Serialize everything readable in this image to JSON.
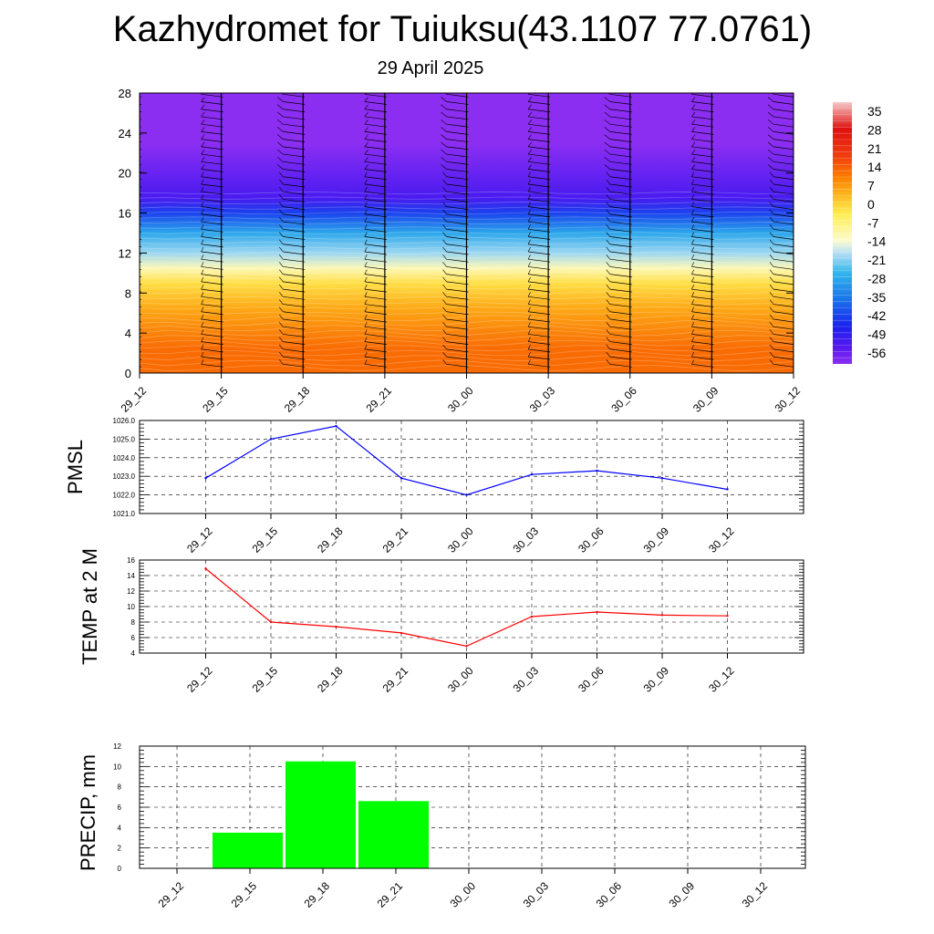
{
  "header": {
    "title": "Kazhydromet for Tuiuksu(43.1107 77.0761)",
    "subtitle": "29 April 2025"
  },
  "colors": {
    "pmsl_line": "#0000ff",
    "temp_line": "#ff0000",
    "precip_bar": "#00ff00",
    "wind_barb": "#000000"
  },
  "chart_data": [
    {
      "type": "heatmap",
      "title": "",
      "x": [
        "29_12",
        "29_15",
        "29_18",
        "29_21",
        "30_00",
        "30_03",
        "30_06",
        "30_09",
        "30_12"
      ],
      "ylabel": "",
      "ylim": [
        0,
        28
      ],
      "yticks": [
        0,
        4,
        8,
        12,
        16,
        20,
        24,
        28
      ],
      "colorbar": {
        "labels": [
          "35",
          "28",
          "21",
          "14",
          "7",
          "0",
          "-7",
          "-14",
          "-21",
          "-28",
          "-35",
          "-42",
          "-49",
          "-56"
        ],
        "stops": [
          {
            "value": 38,
            "color": "#f5c8c8"
          },
          {
            "value": 28,
            "color": "#e01010"
          },
          {
            "value": 18,
            "color": "#f23a10"
          },
          {
            "value": 10,
            "color": "#fb7d00"
          },
          {
            "value": 4,
            "color": "#fdb21a"
          },
          {
            "value": -4,
            "color": "#ffee55"
          },
          {
            "value": -14,
            "color": "#fbfbd0"
          },
          {
            "value": -18,
            "color": "#bfe2f3"
          },
          {
            "value": -26,
            "color": "#31b4ec"
          },
          {
            "value": -36,
            "color": "#1a72e8"
          },
          {
            "value": -46,
            "color": "#1a22f0"
          },
          {
            "value": -54,
            "color": "#5818f0"
          },
          {
            "value": -60,
            "color": "#8c2ef2"
          }
        ]
      },
      "field_description_bands": [
        {
          "y0": 0,
          "y1": 5,
          "value": 12
        },
        {
          "y0": 5,
          "y1": 8,
          "value": 5
        },
        {
          "y0": 8,
          "y1": 10,
          "value": -2
        },
        {
          "y0": 10,
          "y1": 11,
          "value": -12
        },
        {
          "y0": 11,
          "y1": 13,
          "value": -20
        },
        {
          "y0": 13,
          "y1": 15,
          "value": -28
        },
        {
          "y0": 15,
          "y1": 17,
          "value": -42
        },
        {
          "y0": 17,
          "y1": 18,
          "value": -52
        },
        {
          "y0": 18,
          "y1": 28,
          "value": -60
        }
      ]
    },
    {
      "type": "line",
      "ylabel": "PMSL",
      "x": [
        "29_12",
        "29_15",
        "29_18",
        "29_21",
        "30_00",
        "30_03",
        "30_06",
        "30_09",
        "30_12"
      ],
      "series": [
        {
          "values": [
            1022.9,
            1025.0,
            1025.7,
            1022.9,
            1022.0,
            1023.1,
            1023.3,
            1022.9,
            1022.3
          ]
        }
      ],
      "ylim": [
        1021.0,
        1026.0
      ],
      "yticks": [
        "1021.0",
        "1022.0",
        "1023.0",
        "1024.0",
        "1025.0",
        "1026.0"
      ],
      "grid": true
    },
    {
      "type": "line",
      "ylabel": "TEMP at 2 M",
      "x": [
        "29_12",
        "29_15",
        "29_18",
        "29_21",
        "30_00",
        "30_03",
        "30_06",
        "30_09",
        "30_12"
      ],
      "series": [
        {
          "values": [
            14.9,
            8.0,
            7.4,
            6.6,
            4.9,
            8.7,
            9.3,
            8.9,
            8.8
          ]
        }
      ],
      "ylim": [
        4,
        16
      ],
      "yticks": [
        "4",
        "6",
        "8",
        "10",
        "12",
        "14",
        "16"
      ],
      "grid": true
    },
    {
      "type": "bar",
      "ylabel": "PRECIP, mm",
      "categories": [
        "29_12",
        "29_15",
        "29_18",
        "29_21",
        "30_00",
        "30_03",
        "30_06",
        "30_09",
        "30_12"
      ],
      "values": [
        0,
        3.5,
        10.5,
        6.6,
        0,
        0,
        0,
        0,
        0
      ],
      "ylim": [
        0,
        12
      ],
      "yticks": [
        "0",
        "2",
        "4",
        "6",
        "8",
        "10",
        "12"
      ],
      "grid": true
    }
  ]
}
